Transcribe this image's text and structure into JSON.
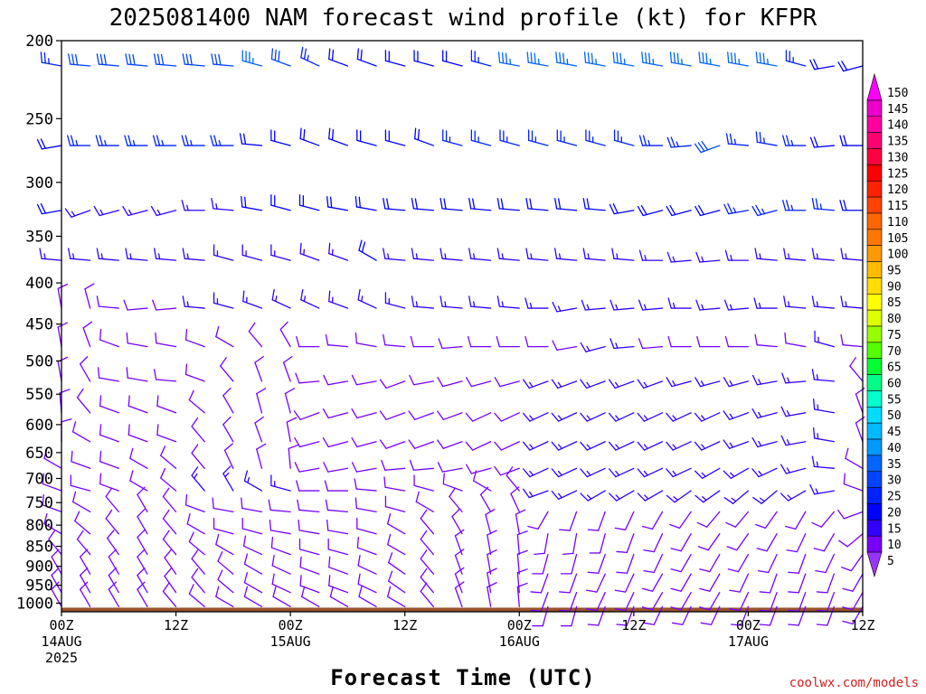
{
  "chart_data": {
    "type": "wind_barb_profile",
    "title": "2025081400 NAM forecast wind profile (kt) for KFPR",
    "xlabel": "Forecast Time (UTC)",
    "credit": "coolwx.com/models",
    "x_ticks": [
      {
        "hour": 0,
        "lines": [
          "00Z",
          "14AUG",
          "2025"
        ]
      },
      {
        "hour": 12,
        "lines": [
          "12Z"
        ]
      },
      {
        "hour": 24,
        "lines": [
          "00Z",
          "15AUG"
        ]
      },
      {
        "hour": 36,
        "lines": [
          "12Z"
        ]
      },
      {
        "hour": 48,
        "lines": [
          "00Z",
          "16AUG"
        ]
      },
      {
        "hour": 60,
        "lines": [
          "12Z"
        ]
      },
      {
        "hour": 72,
        "lines": [
          "00Z",
          "17AUG"
        ]
      },
      {
        "hour": 84,
        "lines": [
          "12Z"
        ]
      }
    ],
    "xlim": [
      0,
      84
    ],
    "y_ticks": [
      200,
      250,
      300,
      350,
      400,
      450,
      500,
      550,
      600,
      650,
      700,
      750,
      800,
      850,
      900,
      950,
      1000
    ],
    "ylim": [
      200,
      1025
    ],
    "y_scale": "log-pressure",
    "ground_color": "#9a522c",
    "colorbar": {
      "labels": [
        150,
        145,
        140,
        135,
        130,
        125,
        120,
        115,
        110,
        105,
        100,
        95,
        90,
        85,
        80,
        75,
        70,
        65,
        60,
        55,
        50,
        45,
        40,
        35,
        30,
        25,
        20,
        15,
        10,
        5
      ],
      "colors": [
        "#ff00ff",
        "#ee00cc",
        "#ff00a0",
        "#ff0070",
        "#ff0040",
        "#ff0000",
        "#ff2200",
        "#ff4400",
        "#ff6600",
        "#ff7700",
        "#ff9900",
        "#ffbb00",
        "#ffdd00",
        "#ffff00",
        "#ddff00",
        "#99ff00",
        "#55ff00",
        "#00ff33",
        "#00ff88",
        "#00ffcc",
        "#00ddff",
        "#00bbff",
        "#0099ff",
        "#0066ff",
        "#0044ff",
        "#0022ff",
        "#0000ff",
        "#3300ff",
        "#7700ff",
        "#9933ff"
      ]
    },
    "hours": [
      0,
      3,
      6,
      9,
      12,
      15,
      18,
      21,
      24,
      27,
      30,
      33,
      36,
      39,
      42,
      45,
      48,
      51,
      54,
      57,
      60,
      63,
      66,
      69,
      72,
      75,
      78,
      81,
      84
    ],
    "levels": [
      {
        "p": 215,
        "dir": [
          280,
          275,
          275,
          275,
          275,
          275,
          275,
          285,
          290,
          295,
          290,
          290,
          285,
          285,
          285,
          285,
          280,
          280,
          280,
          280,
          280,
          280,
          280,
          280,
          280,
          280,
          285,
          260,
          255
        ],
        "spd": [
          25,
          30,
          30,
          30,
          30,
          30,
          30,
          35,
          30,
          25,
          20,
          20,
          20,
          20,
          20,
          25,
          35,
          35,
          35,
          35,
          35,
          35,
          35,
          35,
          35,
          35,
          25,
          20,
          20
        ]
      },
      {
        "p": 270,
        "dir": [
          260,
          270,
          270,
          270,
          270,
          270,
          270,
          275,
          285,
          290,
          290,
          285,
          285,
          290,
          285,
          285,
          285,
          285,
          285,
          285,
          285,
          270,
          265,
          250,
          275,
          280,
          270,
          265,
          270
        ],
        "spd": [
          20,
          25,
          25,
          25,
          25,
          25,
          25,
          20,
          20,
          20,
          20,
          20,
          20,
          20,
          25,
          25,
          25,
          25,
          25,
          25,
          25,
          25,
          25,
          30,
          25,
          25,
          25,
          20,
          20
        ]
      },
      {
        "p": 325,
        "dir": [
          260,
          250,
          255,
          255,
          255,
          270,
          275,
          280,
          285,
          285,
          280,
          280,
          275,
          275,
          275,
          275,
          275,
          275,
          275,
          275,
          260,
          255,
          255,
          255,
          260,
          255,
          270,
          275,
          270
        ],
        "spd": [
          20,
          15,
          15,
          15,
          15,
          15,
          15,
          20,
          20,
          20,
          20,
          20,
          20,
          20,
          20,
          20,
          20,
          20,
          20,
          20,
          20,
          20,
          20,
          20,
          25,
          25,
          25,
          25,
          20
        ]
      },
      {
        "p": 375,
        "dir": [
          275,
          275,
          275,
          275,
          275,
          275,
          285,
          285,
          285,
          290,
          290,
          300,
          275,
          275,
          275,
          275,
          275,
          275,
          275,
          275,
          275,
          270,
          265,
          265,
          270,
          275,
          275,
          275,
          275
        ],
        "spd": [
          15,
          15,
          15,
          15,
          15,
          15,
          15,
          15,
          15,
          15,
          15,
          20,
          15,
          15,
          15,
          15,
          15,
          15,
          15,
          15,
          15,
          15,
          15,
          15,
          15,
          15,
          15,
          15,
          15
        ]
      },
      {
        "p": 430,
        "dir": [
          350,
          345,
          275,
          265,
          265,
          275,
          285,
          290,
          295,
          295,
          290,
          295,
          285,
          275,
          275,
          275,
          275,
          270,
          260,
          265,
          265,
          265,
          270,
          265,
          265,
          270,
          275,
          275,
          275
        ],
        "spd": [
          10,
          10,
          10,
          10,
          10,
          15,
          15,
          15,
          15,
          15,
          15,
          15,
          15,
          15,
          15,
          15,
          15,
          15,
          15,
          15,
          15,
          15,
          15,
          15,
          15,
          15,
          15,
          15,
          15
        ]
      },
      {
        "p": 480,
        "dir": [
          350,
          340,
          290,
          280,
          280,
          290,
          300,
          320,
          330,
          270,
          275,
          280,
          275,
          270,
          265,
          270,
          270,
          270,
          260,
          255,
          265,
          265,
          270,
          270,
          270,
          275,
          280,
          285,
          275
        ],
        "spd": [
          10,
          10,
          10,
          10,
          10,
          10,
          10,
          10,
          10,
          10,
          10,
          10,
          10,
          10,
          10,
          10,
          10,
          10,
          10,
          15,
          15,
          10,
          10,
          10,
          10,
          10,
          10,
          15,
          10
        ]
      },
      {
        "p": 530,
        "dir": [
          350,
          330,
          280,
          280,
          275,
          290,
          320,
          340,
          340,
          265,
          260,
          260,
          250,
          260,
          255,
          255,
          255,
          250,
          250,
          250,
          250,
          250,
          255,
          255,
          255,
          260,
          265,
          275,
          320
        ],
        "spd": [
          10,
          10,
          10,
          10,
          10,
          10,
          10,
          10,
          10,
          10,
          10,
          10,
          10,
          10,
          10,
          10,
          10,
          15,
          15,
          15,
          15,
          15,
          15,
          15,
          15,
          15,
          15,
          15,
          10
        ]
      },
      {
        "p": 580,
        "dir": [
          355,
          320,
          290,
          290,
          290,
          310,
          330,
          345,
          345,
          250,
          255,
          255,
          250,
          250,
          250,
          245,
          245,
          245,
          245,
          245,
          245,
          245,
          245,
          245,
          250,
          255,
          260,
          280,
          340
        ],
        "spd": [
          10,
          10,
          10,
          10,
          10,
          10,
          10,
          10,
          10,
          10,
          10,
          10,
          10,
          10,
          10,
          10,
          10,
          15,
          15,
          15,
          15,
          15,
          15,
          15,
          15,
          15,
          15,
          15,
          10
        ]
      },
      {
        "p": 630,
        "dir": [
          0,
          300,
          290,
          290,
          290,
          320,
          330,
          340,
          350,
          255,
          255,
          255,
          250,
          250,
          250,
          245,
          245,
          245,
          245,
          245,
          245,
          245,
          245,
          245,
          250,
          255,
          260,
          280,
          340
        ],
        "spd": [
          10,
          10,
          10,
          10,
          10,
          10,
          10,
          10,
          10,
          10,
          10,
          10,
          10,
          10,
          10,
          10,
          10,
          15,
          15,
          15,
          15,
          15,
          15,
          15,
          15,
          15,
          15,
          15,
          10
        ]
      },
      {
        "p": 680,
        "dir": [
          300,
          290,
          290,
          300,
          310,
          320,
          335,
          345,
          355,
          260,
          260,
          260,
          265,
          265,
          260,
          255,
          250,
          245,
          245,
          245,
          245,
          245,
          245,
          240,
          240,
          245,
          255,
          275,
          300
        ],
        "spd": [
          10,
          10,
          10,
          10,
          10,
          10,
          10,
          10,
          10,
          10,
          10,
          10,
          10,
          10,
          10,
          10,
          10,
          15,
          15,
          15,
          15,
          15,
          15,
          15,
          15,
          15,
          15,
          15,
          10
        ]
      },
      {
        "p": 725,
        "dir": [
          290,
          285,
          290,
          300,
          310,
          320,
          330,
          300,
          285,
          270,
          270,
          275,
          280,
          285,
          290,
          300,
          320,
          250,
          245,
          240,
          240,
          240,
          235,
          235,
          230,
          230,
          240,
          260,
          290
        ],
        "spd": [
          10,
          10,
          10,
          10,
          10,
          15,
          15,
          15,
          15,
          10,
          10,
          10,
          10,
          10,
          10,
          10,
          10,
          15,
          15,
          15,
          15,
          15,
          15,
          15,
          15,
          15,
          15,
          15,
          10
        ]
      },
      {
        "p": 770,
        "dir": [
          290,
          300,
          320,
          330,
          320,
          290,
          280,
          280,
          275,
          275,
          275,
          280,
          285,
          300,
          320,
          330,
          335,
          210,
          200,
          200,
          205,
          210,
          215,
          220,
          220,
          215,
          210,
          220,
          250
        ],
        "spd": [
          10,
          10,
          10,
          10,
          10,
          10,
          10,
          10,
          10,
          10,
          10,
          10,
          10,
          10,
          10,
          10,
          10,
          10,
          10,
          10,
          10,
          10,
          10,
          10,
          10,
          10,
          10,
          10,
          10
        ]
      },
      {
        "p": 820,
        "dir": [
          300,
          310,
          320,
          330,
          320,
          300,
          285,
          285,
          280,
          280,
          280,
          285,
          300,
          320,
          330,
          345,
          350,
          190,
          190,
          195,
          200,
          205,
          210,
          215,
          215,
          210,
          205,
          210,
          230
        ],
        "spd": [
          10,
          10,
          10,
          10,
          10,
          10,
          10,
          10,
          10,
          10,
          10,
          10,
          10,
          10,
          10,
          10,
          10,
          10,
          10,
          10,
          10,
          10,
          10,
          10,
          10,
          10,
          10,
          10,
          10
        ]
      },
      {
        "p": 870,
        "dir": [
          320,
          320,
          325,
          330,
          320,
          310,
          300,
          295,
          290,
          285,
          285,
          290,
          300,
          320,
          340,
          350,
          355,
          195,
          195,
          200,
          200,
          205,
          210,
          210,
          210,
          205,
          200,
          205,
          215
        ],
        "spd": [
          10,
          10,
          10,
          10,
          10,
          10,
          10,
          10,
          10,
          10,
          10,
          10,
          10,
          10,
          10,
          10,
          10,
          10,
          10,
          10,
          10,
          10,
          10,
          10,
          10,
          10,
          10,
          10,
          10
        ]
      },
      {
        "p": 920,
        "dir": [
          330,
          330,
          330,
          330,
          325,
          320,
          310,
          300,
          295,
          290,
          290,
          295,
          305,
          320,
          340,
          350,
          355,
          200,
          200,
          205,
          205,
          210,
          210,
          210,
          205,
          200,
          200,
          200,
          210
        ],
        "spd": [
          10,
          10,
          10,
          10,
          10,
          10,
          10,
          10,
          10,
          10,
          10,
          10,
          10,
          10,
          10,
          10,
          10,
          10,
          10,
          10,
          10,
          10,
          10,
          10,
          10,
          10,
          10,
          10,
          10
        ]
      },
      {
        "p": 970,
        "dir": [
          330,
          330,
          330,
          330,
          325,
          320,
          310,
          300,
          295,
          290,
          290,
          295,
          305,
          320,
          340,
          350,
          355,
          200,
          200,
          205,
          205,
          210,
          210,
          210,
          205,
          200,
          200,
          200,
          210
        ],
        "spd": [
          10,
          10,
          10,
          10,
          10,
          10,
          10,
          10,
          10,
          10,
          10,
          10,
          10,
          10,
          10,
          10,
          10,
          10,
          10,
          10,
          10,
          10,
          10,
          10,
          10,
          10,
          10,
          10,
          10
        ]
      },
      {
        "p": 1010,
        "dir": [
          330,
          330,
          330,
          330,
          320,
          310,
          300,
          300,
          300,
          300,
          300,
          300,
          300,
          320,
          340,
          350,
          355,
          195,
          195,
          200,
          200,
          205,
          205,
          205,
          200,
          200,
          200,
          200,
          210
        ],
        "spd": [
          10,
          10,
          10,
          10,
          10,
          10,
          10,
          10,
          10,
          10,
          10,
          10,
          10,
          10,
          10,
          10,
          10,
          10,
          10,
          10,
          10,
          10,
          10,
          10,
          10,
          10,
          10,
          10,
          10
        ]
      }
    ]
  }
}
